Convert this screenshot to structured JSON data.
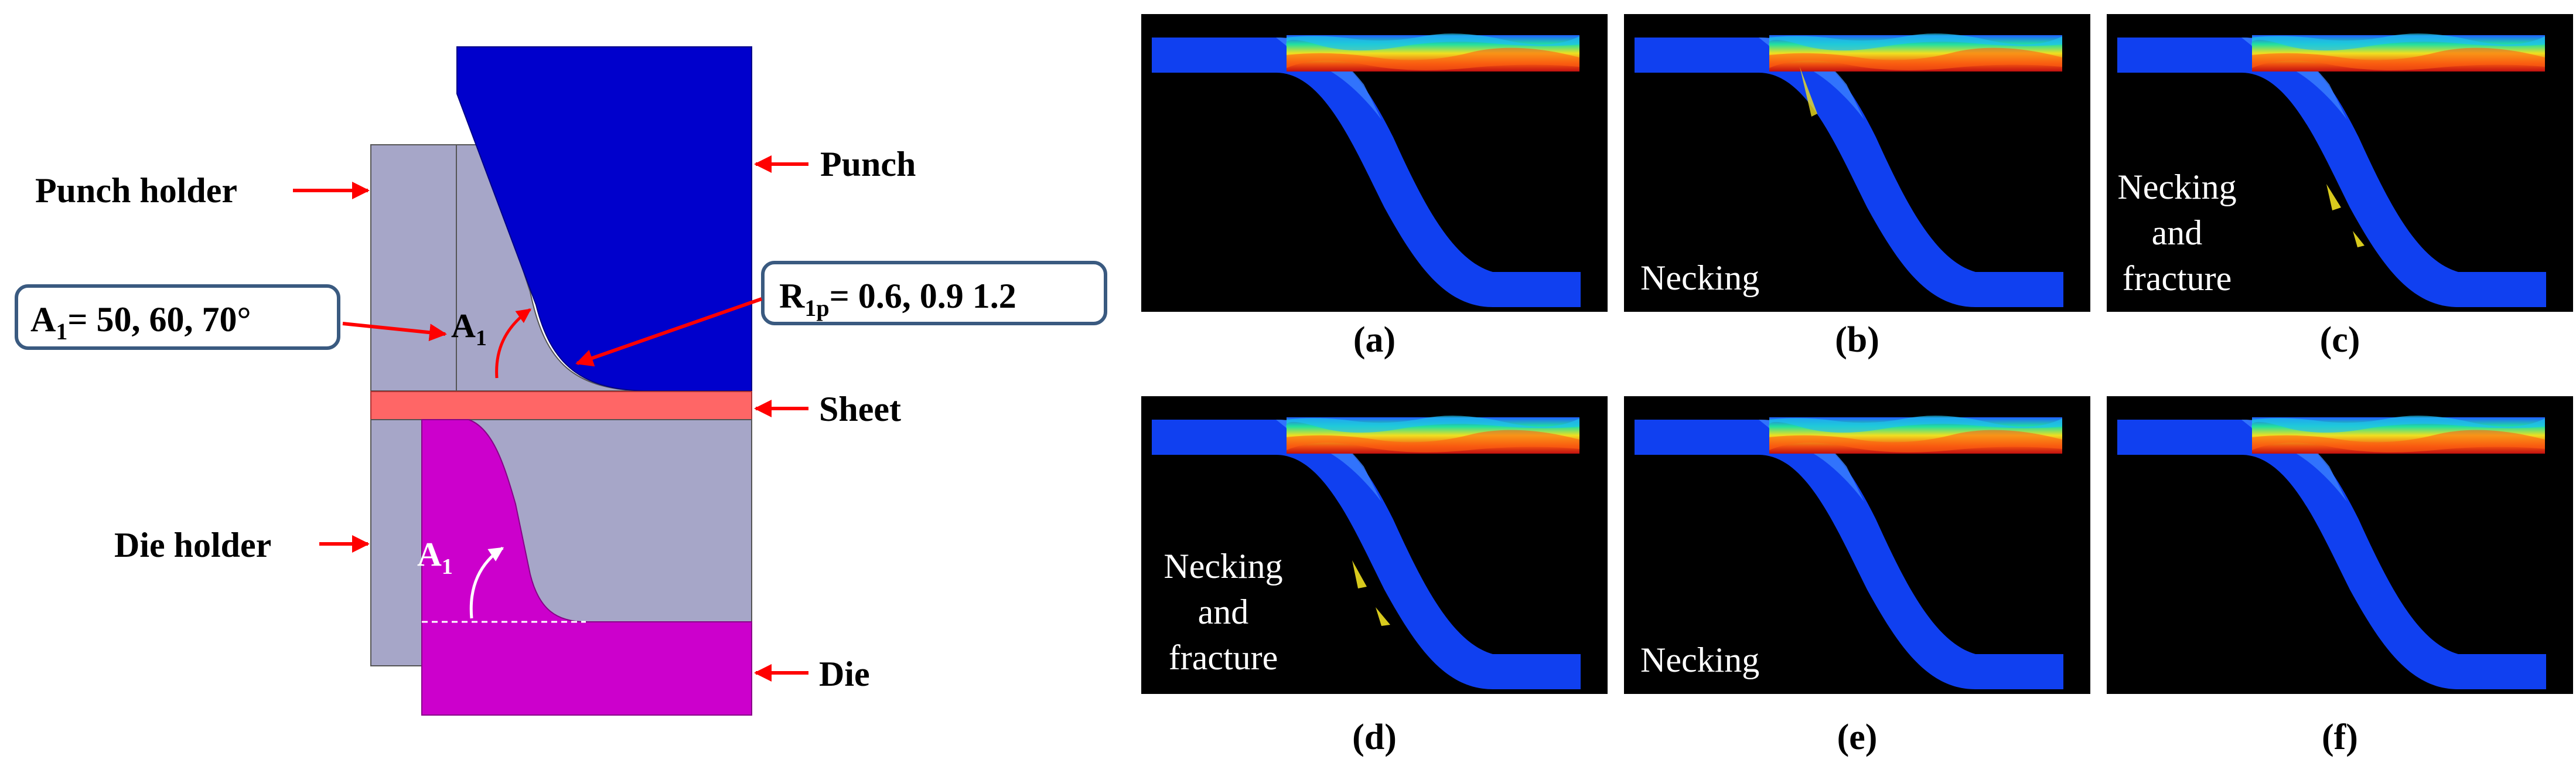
{
  "schematic": {
    "labels": {
      "punch_holder": "Punch holder",
      "punch": "Punch",
      "sheet": "Sheet",
      "die_holder": "Die holder",
      "die": "Die"
    },
    "angle_symbol": "A",
    "angle_subscript": "1",
    "angle_box": {
      "prefix": "A",
      "subscript": "1",
      "text": "= 50, 60, 70°"
    },
    "radius_box": {
      "prefix": "R",
      "subscript": "1p",
      "text": "= 0.6, 0.9 1.2"
    }
  },
  "panels": [
    {
      "caption": "(a)",
      "annotation": ""
    },
    {
      "caption": "(b)",
      "annotation": "Necking"
    },
    {
      "caption": "(c)",
      "annotation": "Necking and fracture"
    },
    {
      "caption": "(d)",
      "annotation": "Necking and fracture"
    },
    {
      "caption": "(e)",
      "annotation": "Necking"
    },
    {
      "caption": "(f)",
      "annotation": ""
    }
  ],
  "annotation_lines": {
    "c": [
      "Necking",
      "and",
      "fracture"
    ],
    "d": [
      "Necking",
      "and",
      "fracture"
    ]
  },
  "colors": {
    "punch": "#0000CC",
    "holder": "#A6A6C8",
    "sheet": "#FF6666",
    "die": "#CC00CC",
    "arrow": "#FF0000",
    "box_border": "#3A5A80",
    "sim_background": "#000000",
    "sim_sheet": "#1040F0"
  }
}
